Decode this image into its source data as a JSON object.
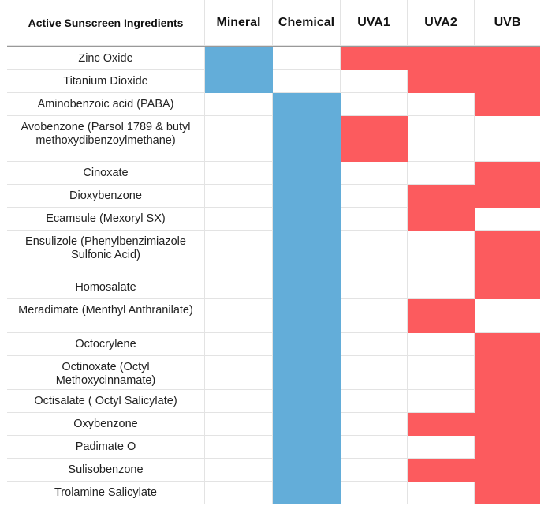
{
  "chart_data": {
    "type": "table",
    "columns": [
      "Active Sunscreen Ingredients",
      "Mineral",
      "Chemical",
      "UVA1",
      "UVA2",
      "UVB"
    ],
    "colors": {
      "type": "#63add9",
      "protection": "#fc5b5e"
    },
    "rows": [
      {
        "name": "Zinc Oxide",
        "mineral": true,
        "chemical": false,
        "uva1": true,
        "uva2": true,
        "uvb": true
      },
      {
        "name": "Titanium Dioxide",
        "mineral": true,
        "chemical": false,
        "uva1": false,
        "uva2": true,
        "uvb": true
      },
      {
        "name": "Aminobenzoic acid (PABA)",
        "mineral": false,
        "chemical": true,
        "uva1": false,
        "uva2": false,
        "uvb": true
      },
      {
        "name": "Avobenzone (Parsol 1789 & butyl methoxydibenzoylmethane)",
        "mineral": false,
        "chemical": true,
        "uva1": true,
        "uva2": false,
        "uvb": false
      },
      {
        "name": "Cinoxate",
        "mineral": false,
        "chemical": true,
        "uva1": false,
        "uva2": false,
        "uvb": true
      },
      {
        "name": "Dioxybenzone",
        "mineral": false,
        "chemical": true,
        "uva1": false,
        "uva2": true,
        "uvb": true
      },
      {
        "name": "Ecamsule (Mexoryl SX)",
        "mineral": false,
        "chemical": true,
        "uva1": false,
        "uva2": true,
        "uvb": false
      },
      {
        "name": "Ensulizole (Phenylbenzimiazole Sulfonic Acid)",
        "mineral": false,
        "chemical": true,
        "uva1": false,
        "uva2": false,
        "uvb": true
      },
      {
        "name": "Homosalate",
        "mineral": false,
        "chemical": true,
        "uva1": false,
        "uva2": false,
        "uvb": true
      },
      {
        "name": "Meradimate (Menthyl Anthranilate)",
        "mineral": false,
        "chemical": true,
        "uva1": false,
        "uva2": true,
        "uvb": false
      },
      {
        "name": "Octocrylene",
        "mineral": false,
        "chemical": true,
        "uva1": false,
        "uva2": false,
        "uvb": true
      },
      {
        "name": "Octinoxate (Octyl Methoxycinnamate)",
        "mineral": false,
        "chemical": true,
        "uva1": false,
        "uva2": false,
        "uvb": true
      },
      {
        "name": "Octisalate ( Octyl Salicylate)",
        "mineral": false,
        "chemical": true,
        "uva1": false,
        "uva2": false,
        "uvb": true
      },
      {
        "name": "Oxybenzone",
        "mineral": false,
        "chemical": true,
        "uva1": false,
        "uva2": true,
        "uvb": true
      },
      {
        "name": "Padimate O",
        "mineral": false,
        "chemical": true,
        "uva1": false,
        "uva2": false,
        "uvb": true
      },
      {
        "name": "Sulisobenzone",
        "mineral": false,
        "chemical": true,
        "uva1": false,
        "uva2": true,
        "uvb": true
      },
      {
        "name": "Trolamine Salicylate",
        "mineral": false,
        "chemical": true,
        "uva1": false,
        "uva2": false,
        "uvb": true
      }
    ]
  }
}
